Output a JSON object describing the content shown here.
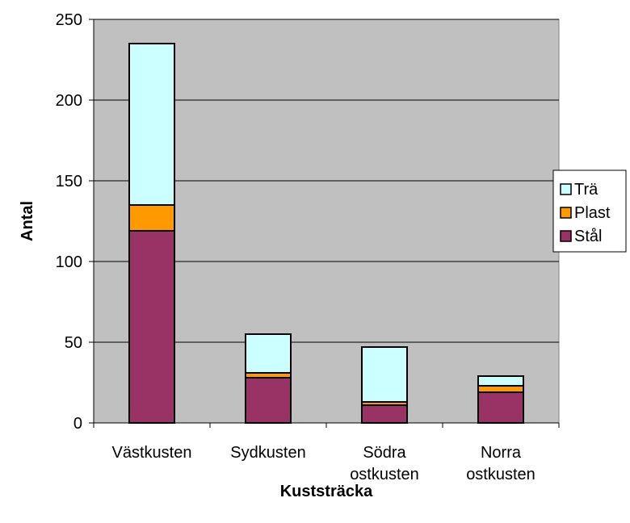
{
  "chart_data": {
    "type": "bar",
    "stacked": true,
    "categories": [
      [
        "Västkusten"
      ],
      [
        "Sydkusten"
      ],
      [
        "Södra",
        "ostkusten"
      ],
      [
        "Norra",
        "ostkusten"
      ]
    ],
    "series": [
      {
        "name": "Stål",
        "values": [
          119,
          28,
          11,
          19
        ],
        "color": "#993366"
      },
      {
        "name": "Plast",
        "values": [
          16,
          3,
          2,
          4
        ],
        "color": "#ff9900"
      },
      {
        "name": "Trä",
        "values": [
          100,
          24,
          34,
          6
        ],
        "color": "#ccffff"
      }
    ],
    "xlabel": "Kuststräcka",
    "ylabel": "Antal",
    "ylim": [
      0,
      250
    ],
    "yticks": [
      0,
      50,
      100,
      150,
      200,
      250
    ],
    "grid": true,
    "plot_background": "#c0c0c0",
    "legend_position": "right",
    "legend_order": [
      "Trä",
      "Plast",
      "Stål"
    ]
  }
}
